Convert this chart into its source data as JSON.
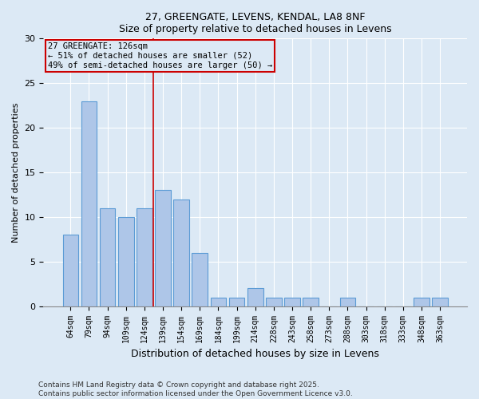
{
  "title_line1": "27, GREENGATE, LEVENS, KENDAL, LA8 8NF",
  "title_line2": "Size of property relative to detached houses in Levens",
  "xlabel": "Distribution of detached houses by size in Levens",
  "ylabel": "Number of detached properties",
  "footer_line1": "Contains HM Land Registry data © Crown copyright and database right 2025.",
  "footer_line2": "Contains public sector information licensed under the Open Government Licence v3.0.",
  "categories": [
    "64sqm",
    "79sqm",
    "94sqm",
    "109sqm",
    "124sqm",
    "139sqm",
    "154sqm",
    "169sqm",
    "184sqm",
    "199sqm",
    "214sqm",
    "228sqm",
    "243sqm",
    "258sqm",
    "273sqm",
    "288sqm",
    "303sqm",
    "318sqm",
    "333sqm",
    "348sqm",
    "363sqm"
  ],
  "values": [
    8,
    23,
    11,
    10,
    11,
    13,
    12,
    6,
    1,
    1,
    2,
    1,
    1,
    1,
    0,
    1,
    0,
    0,
    0,
    1,
    1
  ],
  "bar_color": "#aec6e8",
  "bar_edge_color": "#5b9bd5",
  "background_color": "#dce9f5",
  "property_size_index": 4,
  "red_line_color": "#cc0000",
  "annotation_line1": "27 GREENGATE: 126sqm",
  "annotation_line2": "← 51% of detached houses are smaller (52)",
  "annotation_line3": "49% of semi-detached houses are larger (50) →",
  "ylim": [
    0,
    30
  ],
  "yticks": [
    0,
    5,
    10,
    15,
    20,
    25,
    30
  ]
}
